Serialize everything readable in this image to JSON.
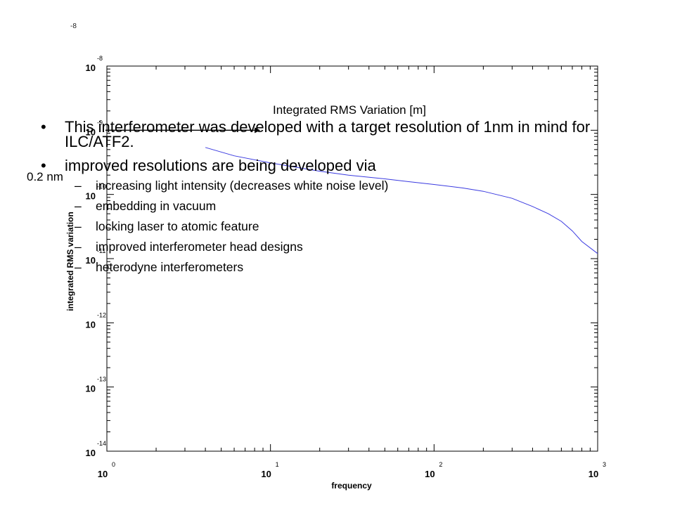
{
  "page_fragment": "-8",
  "annotation": {
    "label": "0.2 nm"
  },
  "bullets": [
    {
      "text": "This interferometer was developed with a target resolution of 1nm in mind for ILC/ATF2."
    },
    {
      "text": "improved resolutions are being developed via"
    }
  ],
  "sub_bullets": [
    {
      "text": "increasing light intensity (decreases white noise level)"
    },
    {
      "text": "embedding in vacuum"
    },
    {
      "text": "locking laser to atomic feature"
    },
    {
      "text": "improved interferometer head designs"
    },
    {
      "text": "heterodyne interferometers"
    }
  ],
  "bullet_marker": "•",
  "sub_marker": "–",
  "colors": {
    "series": "#3a3ae0",
    "axes": "#000000",
    "background": "#ffffff"
  },
  "chart_data": {
    "type": "line",
    "title": "Integrated RMS Variation [m]",
    "xlabel": "frequency",
    "ylabel": "integrated RMS variation",
    "x_scale": "log",
    "y_scale": "log",
    "xlim": [
      1,
      1000
    ],
    "ylim": [
      1e-14,
      1e-08
    ],
    "grid": false,
    "x_ticks": [
      {
        "value": 1,
        "base": "10",
        "exp": "0"
      },
      {
        "value": 10,
        "base": "10",
        "exp": "1"
      },
      {
        "value": 100,
        "base": "10",
        "exp": "2"
      },
      {
        "value": 1000,
        "base": "10",
        "exp": "3"
      }
    ],
    "y_ticks": [
      {
        "value": 1e-08,
        "base": "10",
        "exp": "-8"
      },
      {
        "value": 1e-09,
        "base": "10",
        "exp": "-9"
      },
      {
        "value": 1e-10,
        "base": "10",
        "exp": "-10"
      },
      {
        "value": 1e-11,
        "base": "10",
        "exp": "-11"
      },
      {
        "value": 1e-12,
        "base": "10",
        "exp": "-12"
      },
      {
        "value": 1e-13,
        "base": "10",
        "exp": "-13"
      },
      {
        "value": 1e-14,
        "base": "10",
        "exp": "-14"
      }
    ],
    "series": [
      {
        "x": [
          4,
          6,
          10,
          15,
          20,
          30,
          50,
          70,
          100,
          150,
          200,
          300,
          400,
          500,
          600,
          700,
          800,
          1000
        ],
        "y": [
          5.4e-10,
          4e-10,
          3.1e-10,
          2.6e-10,
          2.3e-10,
          2e-10,
          1.75e-10,
          1.58e-10,
          1.43e-10,
          1.26e-10,
          1.12e-10,
          8.7e-11,
          6.5e-11,
          5e-11,
          3.8e-11,
          2.7e-11,
          1.85e-11,
          1.2e-11
        ]
      }
    ],
    "reference_line": {
      "y": 1e-09,
      "x": [
        1,
        8
      ]
    }
  }
}
